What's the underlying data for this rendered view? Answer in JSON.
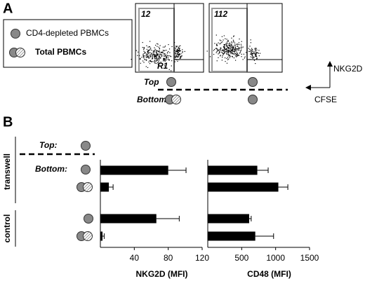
{
  "panel_a": {
    "label": "A",
    "legend": [
      "CD4-depleted PBMCs",
      "Total PBMCs"
    ],
    "gate_counts": [
      "12",
      "112"
    ],
    "gate_name": "R1",
    "top": "Top",
    "bottom": "Bottom:",
    "y_arrow": "NKG2D",
    "x_arrow": "CFSE"
  },
  "panel_b": {
    "label": "B",
    "top": "Top:",
    "bottom": "Bottom:",
    "groups": [
      "transwell",
      "control"
    ]
  },
  "chart_data": [
    {
      "type": "bar",
      "orientation": "horizontal",
      "xlabel": "NKG2D (MFI)",
      "xlim": [
        0,
        120
      ],
      "xticks": [
        40,
        80,
        120
      ],
      "values": [
        80,
        10,
        66,
        2.5
      ],
      "errors": [
        21,
        5,
        27,
        2
      ],
      "color": "#000000"
    },
    {
      "type": "bar",
      "orientation": "horizontal",
      "xlabel": "CD48 (MFI)",
      "xlim": [
        0,
        1500
      ],
      "xticks": [
        500,
        1000,
        1500
      ],
      "values": [
        730,
        1040,
        610,
        700
      ],
      "errors": [
        160,
        140,
        30,
        270
      ],
      "color": "#000000"
    }
  ]
}
